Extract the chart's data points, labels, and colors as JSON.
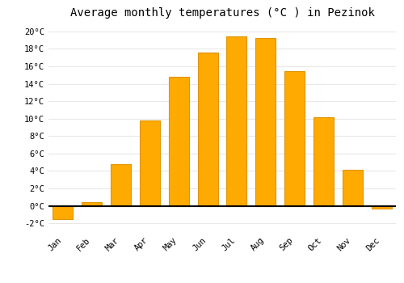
{
  "title": "Average monthly temperatures (°C ) in Pezinok",
  "months": [
    "Jan",
    "Feb",
    "Mar",
    "Apr",
    "May",
    "Jun",
    "Jul",
    "Aug",
    "Sep",
    "Oct",
    "Nov",
    "Dec"
  ],
  "values": [
    -1.5,
    0.4,
    4.8,
    9.8,
    14.8,
    17.6,
    19.4,
    19.2,
    15.4,
    10.2,
    4.1,
    -0.3
  ],
  "bar_color": "#FFAA00",
  "bar_edge_color": "#E09500",
  "ylim": [
    -3,
    21
  ],
  "yticks": [
    -2,
    0,
    2,
    4,
    6,
    8,
    10,
    12,
    14,
    16,
    18,
    20
  ],
  "background_color": "#FFFFFF",
  "grid_color": "#E8E8E8",
  "title_fontsize": 10,
  "tick_fontsize": 7.5,
  "zero_line_color": "#000000",
  "font_family": "monospace"
}
